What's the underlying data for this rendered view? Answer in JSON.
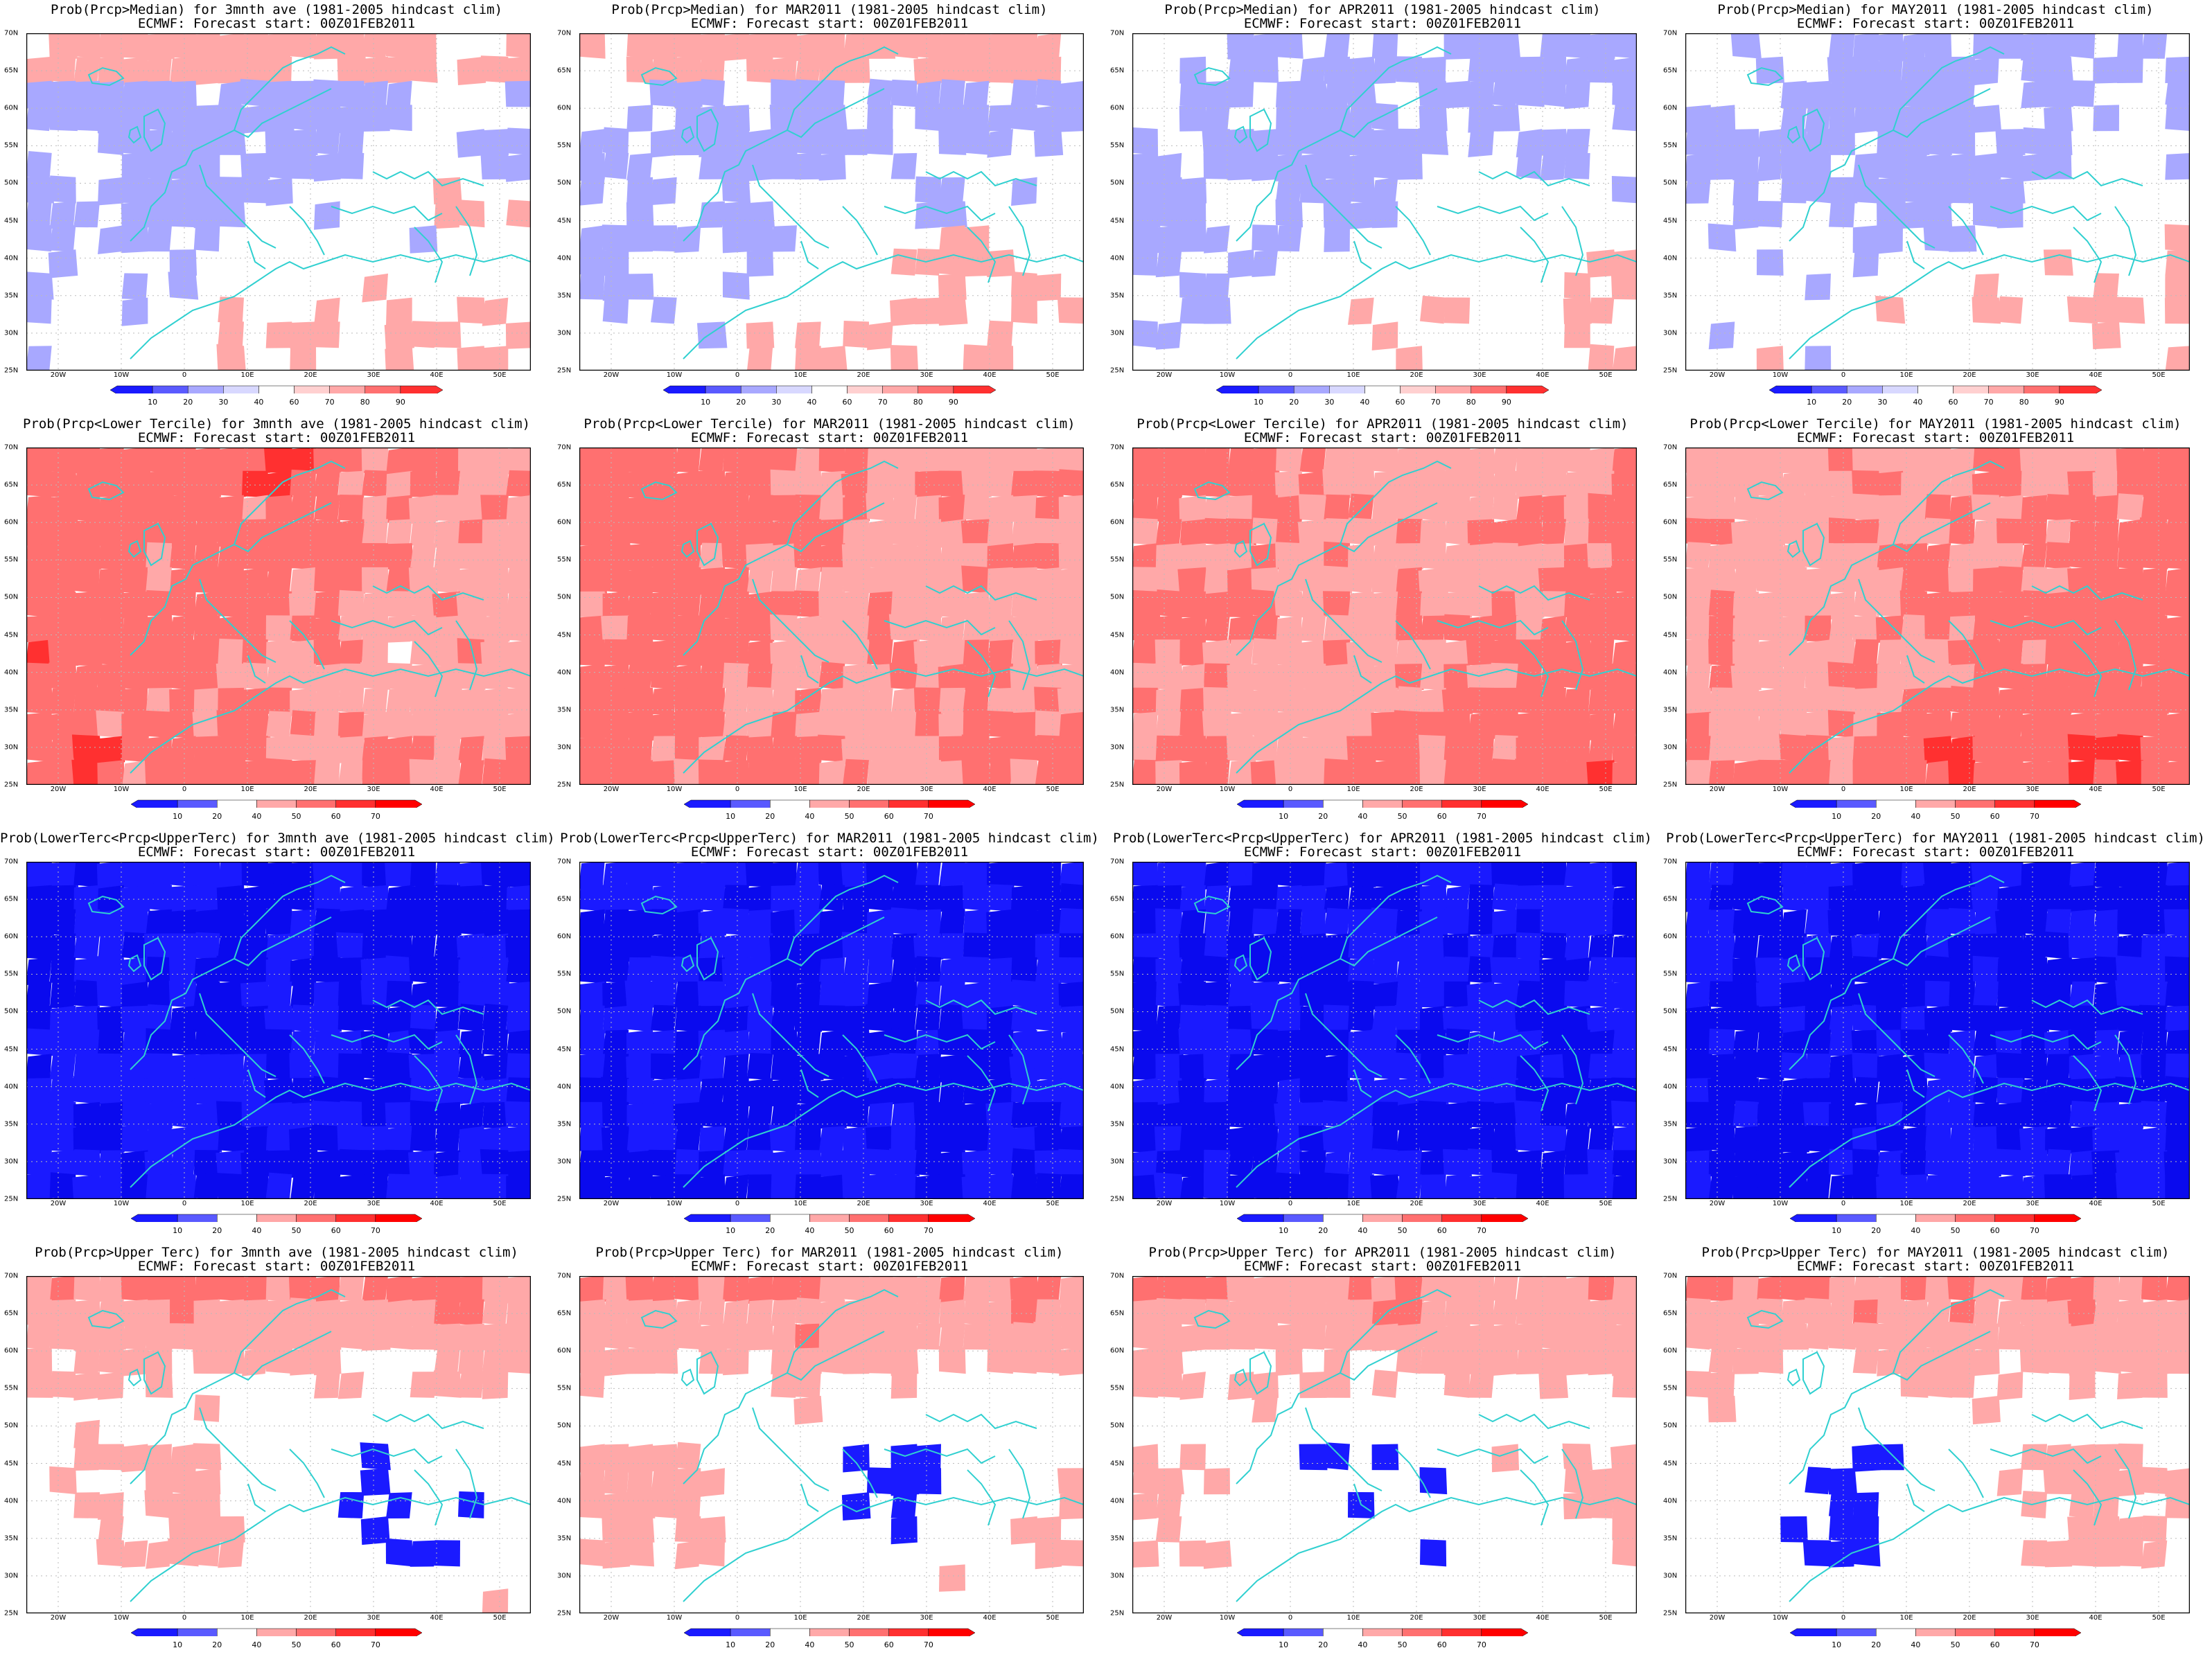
{
  "figure": {
    "source_line": "ECMWF: Forecast start: 00Z01FEB2011",
    "rows": [
      {
        "variable": "Prob(Prcp>Median)",
        "scheme": "median",
        "colorbar_labels": [
          "10",
          "20",
          "30",
          "40",
          "60",
          "70",
          "80",
          "90"
        ],
        "titles": [
          "Prob(Prcp>Median) for 3mnth ave (1981-2005 hindcast clim)",
          "Prob(Prcp>Median) for MAR2011 (1981-2005 hindcast clim)",
          "Prob(Prcp>Median) for APR2011 (1981-2005 hindcast clim)",
          "Prob(Prcp>Median) for MAY2011 (1981-2005 hindcast clim)"
        ]
      },
      {
        "variable": "Prob(Prcp<Lower Tercile)",
        "scheme": "lower",
        "colorbar_labels": [
          "10",
          "20",
          "40",
          "50",
          "60",
          "70"
        ],
        "titles": [
          "Prob(Prcp<Lower Tercile) for 3mnth ave (1981-2005 hindcast clim)",
          "Prob(Prcp<Lower Tercile) for MAR2011 (1981-2005 hindcast clim)",
          "Prob(Prcp<Lower Tercile) for APR2011 (1981-2005 hindcast clim)",
          "Prob(Prcp<Lower Tercile) for MAY2011 (1981-2005 hindcast clim)"
        ]
      },
      {
        "variable": "Prob(LowerTerc<Prcp<UpperTerc)",
        "scheme": "middle",
        "colorbar_labels": [
          "10",
          "20",
          "40",
          "50",
          "60",
          "70"
        ],
        "titles": [
          "Prob(LowerTerc<Prcp<UpperTerc) for 3mnth ave (1981-2005 hindcast clim)",
          "Prob(LowerTerc<Prcp<UpperTerc) for MAR2011 (1981-2005 hindcast clim)",
          "Prob(LowerTerc<Prcp<UpperTerc) for APR2011 (1981-2005 hindcast clim)",
          "Prob(LowerTerc<Prcp<UpperTerc) for MAY2011 (1981-2005 hindcast clim)"
        ]
      },
      {
        "variable": "Prob(Prcp>Upper Terc)",
        "scheme": "upper",
        "colorbar_labels": [
          "10",
          "20",
          "40",
          "50",
          "60",
          "70"
        ],
        "titles": [
          "Prob(Prcp>Upper Terc) for 3mnth ave (1981-2005 hindcast clim)",
          "Prob(Prcp>Upper Terc) for MAR2011 (1981-2005 hindcast clim)",
          "Prob(Prcp>Upper Terc) for APR2011 (1981-2005 hindcast clim)",
          "Prob(Prcp>Upper Terc) for MAY2011 (1981-2005 hindcast clim)"
        ]
      }
    ],
    "lat_ticks": [
      "70N",
      "65N",
      "60N",
      "55N",
      "50N",
      "45N",
      "40N",
      "35N",
      "30N",
      "25N"
    ],
    "lon_ticks": [
      "20W",
      "10W",
      "0",
      "10E",
      "20E",
      "30E",
      "40E",
      "50E"
    ],
    "colors": {
      "blue_dark": "#1a1aff",
      "blue_mid": "#5a5aff",
      "blue_light": "#a8a8ff",
      "red_light": "#ffa8a8",
      "red_mid": "#ff7070",
      "red_dark": "#ff3030",
      "red_deepest": "#ff0000",
      "coast": "#30d0d0"
    }
  }
}
